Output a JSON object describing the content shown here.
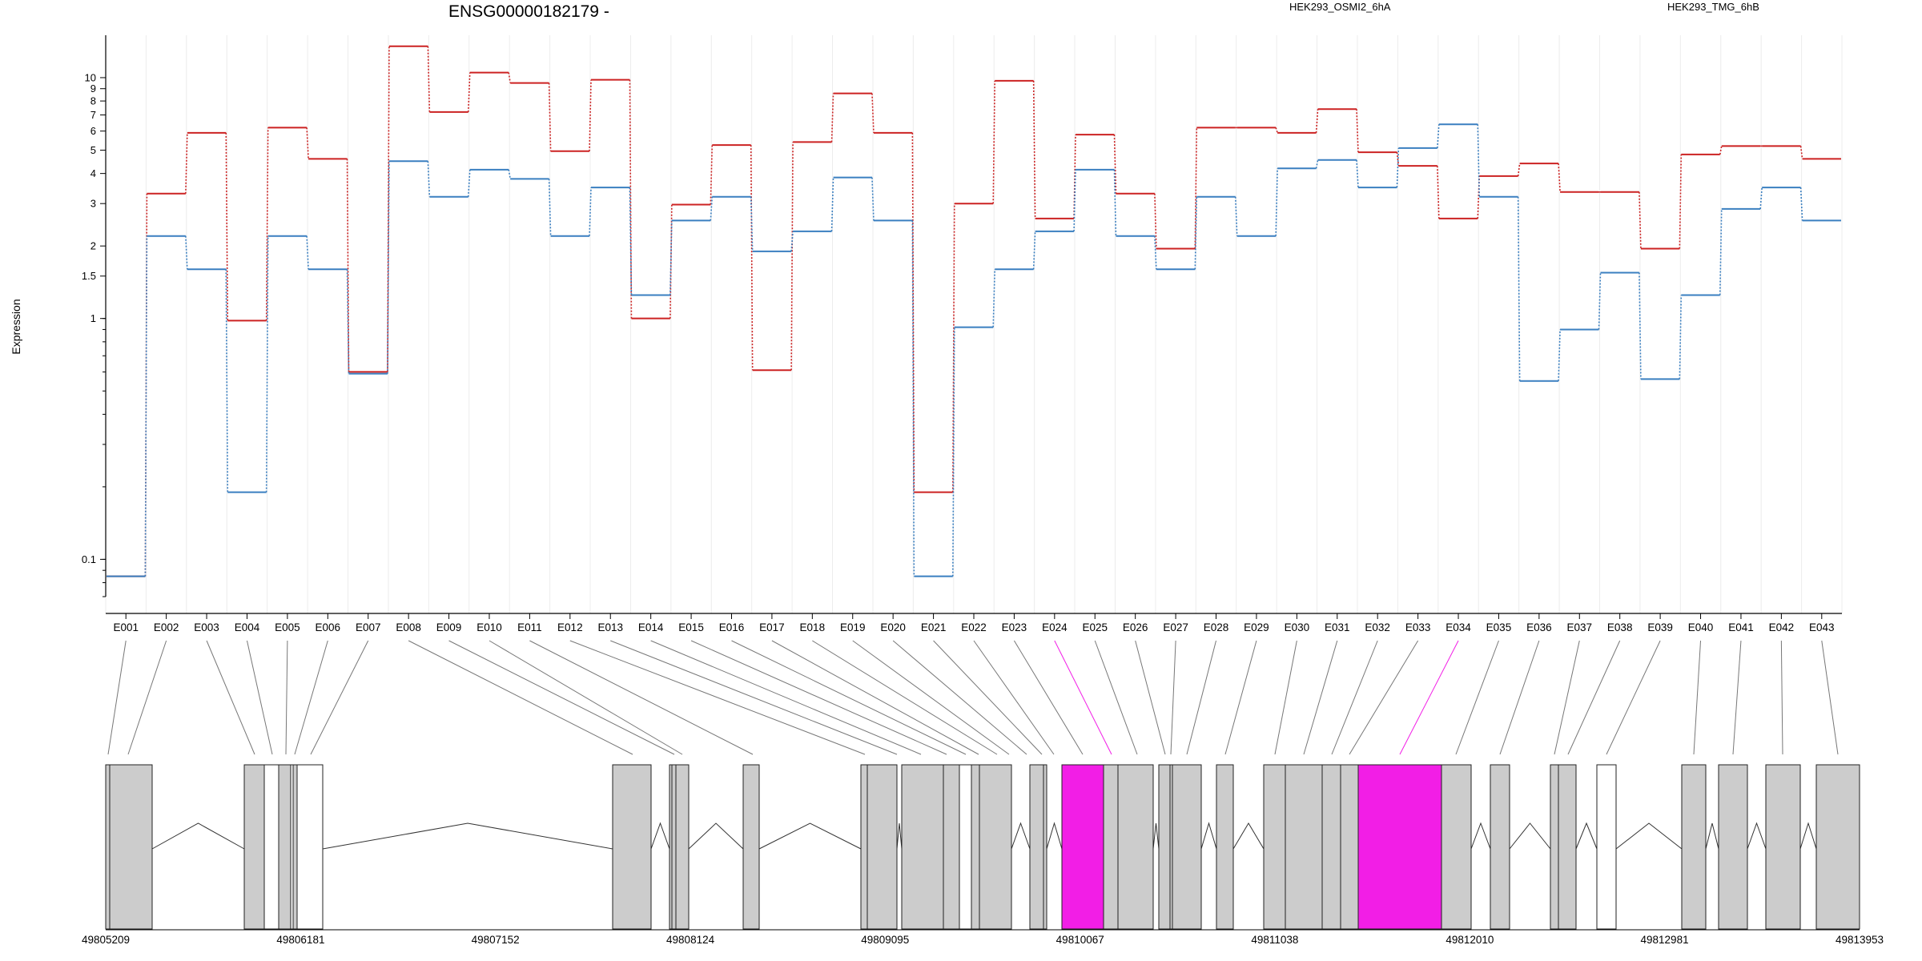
{
  "title": "ENSG00000182179 -",
  "ylabel": "Expression",
  "colors": {
    "series_a": "#cc2222",
    "series_b": "#3a7fc0",
    "highlight": "#f21ee6",
    "exon_fill": "#cccccc"
  },
  "chart_data": {
    "type": "line",
    "title": "ENSG00000182179 -",
    "ylabel": "Expression",
    "yscale": "log",
    "ylim": [
      0.07,
      15
    ],
    "yticks": [
      0.1,
      1,
      1.5,
      2,
      3,
      4,
      5,
      6,
      7,
      8,
      9,
      10
    ],
    "yticklabels": [
      "0.1",
      "1",
      "1.5",
      "2",
      "3",
      "4",
      "5",
      "6",
      "7",
      "8",
      "9",
      "10"
    ],
    "grid": "vertical",
    "legend_position": "top-right",
    "categories": [
      "E001",
      "E002",
      "E003",
      "E004",
      "E005",
      "E006",
      "E007",
      "E008",
      "E009",
      "E010",
      "E011",
      "E012",
      "E013",
      "E014",
      "E015",
      "E016",
      "E017",
      "E018",
      "E019",
      "E020",
      "E021",
      "E022",
      "E023",
      "E024",
      "E025",
      "E026",
      "E027",
      "E028",
      "E029",
      "E030",
      "E031",
      "E032",
      "E033",
      "E034",
      "E035",
      "E036",
      "E037",
      "E038",
      "E039",
      "E040",
      "E041",
      "E042",
      "E043"
    ],
    "series": [
      {
        "name": "HEK293_OSMI2_6hA",
        "values": [
          0.085,
          3.3,
          5.9,
          0.98,
          6.2,
          4.6,
          0.6,
          13.5,
          7.2,
          10.5,
          9.5,
          4.95,
          9.8,
          1.0,
          2.97,
          5.25,
          0.61,
          5.4,
          8.6,
          5.9,
          0.19,
          3.0,
          9.7,
          2.6,
          5.8,
          3.3,
          1.95,
          6.2,
          6.2,
          5.9,
          7.4,
          4.9,
          4.3,
          2.6,
          3.9,
          4.4,
          3.35,
          3.35,
          1.95,
          4.8,
          5.2,
          5.2,
          4.6
        ]
      },
      {
        "name": "HEK293_TMG_6hB",
        "values": [
          0.085,
          2.2,
          1.6,
          0.19,
          2.2,
          1.6,
          0.59,
          4.5,
          3.2,
          4.15,
          3.8,
          2.2,
          3.5,
          1.25,
          2.55,
          3.2,
          1.9,
          2.3,
          3.85,
          2.55,
          0.085,
          0.92,
          1.6,
          2.3,
          4.15,
          2.2,
          1.6,
          3.2,
          2.2,
          4.2,
          4.55,
          3.5,
          5.1,
          6.4,
          3.2,
          0.55,
          0.9,
          1.55,
          0.56,
          1.25,
          2.85,
          3.5,
          2.55
        ]
      }
    ]
  },
  "gene_model": {
    "coordinate_labels": [
      "49805209",
      "49806181",
      "49807152",
      "49808124",
      "49809095",
      "49810067",
      "49811038",
      "49812010",
      "49812981",
      "49813953"
    ],
    "highlighted_exons": [
      "E024",
      "E034"
    ]
  }
}
